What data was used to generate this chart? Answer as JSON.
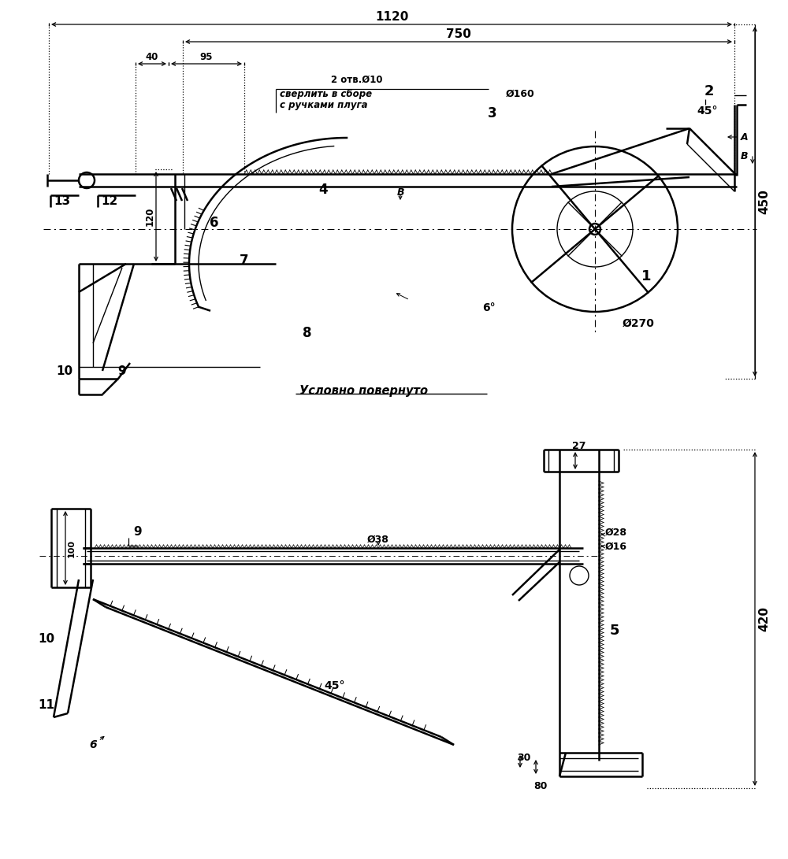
{
  "bg": "#ffffff",
  "lc": "#000000",
  "figsize": [
    10.0,
    10.91
  ],
  "dpi": 100,
  "labels": {
    "dim_1120": "1120",
    "dim_750": "750",
    "dim_40": "40",
    "dim_95": "95",
    "dim_120": "120",
    "dim_450": "450",
    "dim_phi270": "Ø270",
    "dim_phi160": "Ø160",
    "note1": "2 отв.Ø10",
    "note2": "сверлить в сборе",
    "note3": "с ручками плуга",
    "angle_45": "45°",
    "angle_6": "6°",
    "label_A": "A",
    "label_B": "B",
    "note_cond": "Условно повернуто",
    "dim_27": "27",
    "dim_30": "30",
    "dim_80": "80",
    "dim_100": "100",
    "dim_420": "420",
    "dim_phi38": "Ø38",
    "dim_phi28": "Ø28",
    "dim_phi16": "Ø16",
    "angle_45b": "45°"
  }
}
